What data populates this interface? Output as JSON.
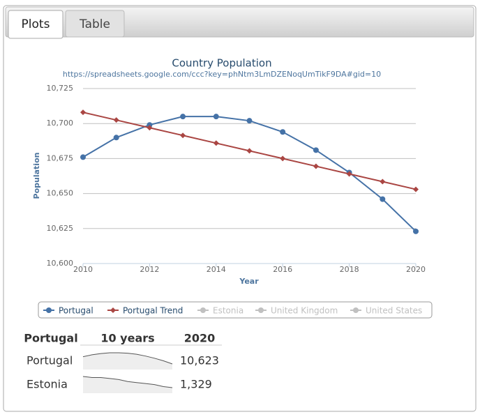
{
  "tabs": [
    "Plots",
    "Table"
  ],
  "chart_data": {
    "type": "line",
    "title": "Country Population",
    "subtitle": "https://spreadsheets.google.com/ccc?key=phNtm3LmDZENoqUmTikF9DA#gid=10",
    "x_label": "Year",
    "y_label": "Population",
    "x": [
      2010,
      2011,
      2012,
      2013,
      2014,
      2015,
      2016,
      2017,
      2018,
      2019,
      2020
    ],
    "series": [
      {
        "name": "Portugal",
        "color": "#4572a7",
        "marker": "circle",
        "values": [
          10676,
          10690,
          10699,
          10705,
          10705,
          10702,
          10694,
          10681,
          10665,
          10646,
          10623
        ]
      },
      {
        "name": "Portugal Trend",
        "color": "#aa4643",
        "marker": "diamond",
        "values": [
          10708,
          10702.5,
          10697,
          10691.5,
          10686,
          10680.5,
          10675,
          10669.5,
          10664,
          10658.5,
          10653
        ]
      },
      {
        "name": "Estonia",
        "color": "#c0c0c0",
        "visible": false
      },
      {
        "name": "United Kingdom",
        "color": "#c0c0c0",
        "visible": false
      },
      {
        "name": "United States",
        "color": "#c0c0c0",
        "visible": false
      }
    ],
    "xlim": [
      2010,
      2020
    ],
    "xticks": [
      2010,
      2012,
      2014,
      2016,
      2018,
      2020
    ],
    "ylim": [
      10600,
      10725
    ],
    "yticks": [
      {
        "value": 10600,
        "label": "10,600"
      },
      {
        "value": 10625,
        "label": "10,625"
      },
      {
        "value": 10650,
        "label": "10,650"
      },
      {
        "value": 10675,
        "label": "10,675"
      },
      {
        "value": 10700,
        "label": "10,700"
      },
      {
        "value": 10725,
        "label": "10,725"
      }
    ],
    "grid": true,
    "legend": "bottom"
  },
  "table": {
    "header": [
      "Portugal",
      "10 years",
      "2020"
    ],
    "rows": [
      {
        "name": "Portugal",
        "trend": [
          10676,
          10690,
          10699,
          10705,
          10705,
          10702,
          10694,
          10681,
          10665,
          10646,
          10623
        ],
        "value": 10623,
        "value_label": "10,623"
      },
      {
        "name": "Estonia",
        "trend": [
          1340,
          1339,
          1339,
          1338,
          1337,
          1335,
          1334,
          1333,
          1332,
          1330,
          1329
        ],
        "value": 1329,
        "value_label": "1,329"
      }
    ]
  }
}
